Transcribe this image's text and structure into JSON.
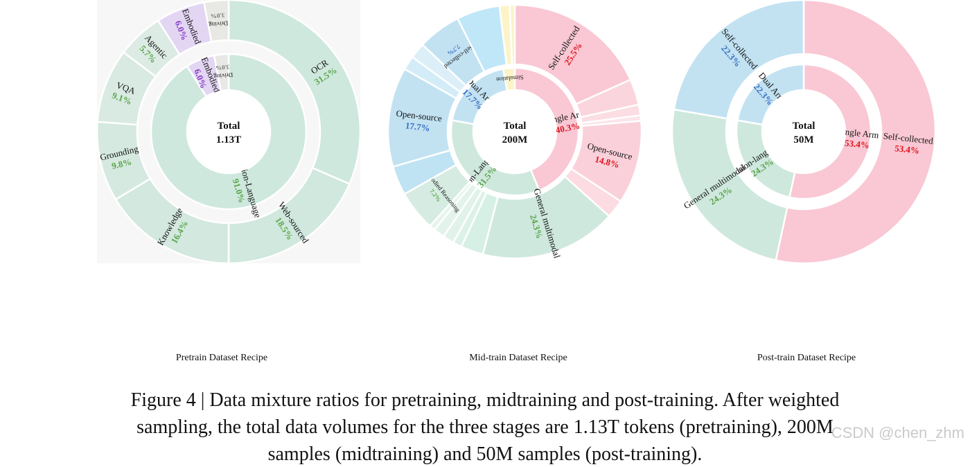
{
  "caption": {
    "line1": "Figure 4 | Data mixture ratios for pretraining, midtraining and post-training. After weighted",
    "line2": "sampling, the total data volumes for the three stages are 1.13T tokens (pretraining), 200M",
    "line3": "samples (midtraining) and 50M samples (post-training)."
  },
  "watermark": "CSDN @chen_zhm",
  "chart_data": [
    {
      "type": "pie",
      "title": "Pretrain Dataset Recipe",
      "center_label": [
        "Total",
        "1.13T"
      ],
      "inner": [
        {
          "name": "Vision-Language",
          "value": 91.0,
          "label": "91.0%",
          "color": "#cfe8de"
        },
        {
          "name": "Embodied",
          "value": 6.0,
          "label": "6.0%",
          "color": "#e3d6f3"
        },
        {
          "name": "Driving",
          "value": 3.0,
          "label": "3.0%",
          "color": "#e8e8e4"
        }
      ],
      "outer": [
        {
          "name": "OCR",
          "value": 31.5,
          "label": "31.5%",
          "color": "#cfe8de",
          "shown": true
        },
        {
          "name": "Web-sourced",
          "value": 18.5,
          "label": "18.5%",
          "color": "#d0e8de",
          "shown": true
        },
        {
          "name": "Knowledge",
          "value": 16.4,
          "label": "16.4%",
          "color": "#d3e8df",
          "shown": true
        },
        {
          "name": "Grounding",
          "value": 9.8,
          "label": "9.8%",
          "color": "#d6e9e0",
          "shown": true
        },
        {
          "name": "VQA",
          "value": 9.1,
          "label": "9.1%",
          "color": "#d9eae2",
          "shown": true
        },
        {
          "name": "Agentic",
          "value": 5.7,
          "label": "5.7%",
          "color": "#dcebe4",
          "shown": true
        },
        {
          "name": "Embodied",
          "value": 6.0,
          "label": "6.0%",
          "color": "#e3d6f3",
          "shown": true
        },
        {
          "name": "Driving",
          "value": 3.0,
          "label": "3.0%",
          "color": "#e8e8e4",
          "shown": true
        }
      ]
    },
    {
      "type": "pie",
      "title": "Mid-train Dataset Recipe",
      "center_label": [
        "Total",
        "200M"
      ],
      "inner": [
        {
          "name": "Single Arm",
          "value": 40.3,
          "label": "40.3%",
          "color": "#f9c8d4"
        },
        {
          "name": "Vision-Language",
          "value": 31.5,
          "label": "31.5%",
          "color": "#cfe8de"
        },
        {
          "name": "Dual Arm",
          "value": 17.7,
          "label": "17.7%",
          "color": "#c2e2f2"
        },
        {
          "name": "Simulation",
          "value": 2.7,
          "label": "",
          "color": "#fcf3c8"
        }
      ],
      "outer": [
        {
          "name": "Self-collected",
          "value": 25.5,
          "label": "25.5%",
          "color": "#f9c8d4",
          "shown": true
        },
        {
          "name": "",
          "value": 4.6,
          "label": "",
          "color": "#fbd5de",
          "shown": false
        },
        {
          "name": "",
          "value": 1.9,
          "label": "",
          "color": "#fcdde4",
          "shown": false
        },
        {
          "name": "",
          "value": 1.0,
          "label": "",
          "color": "#fde4ea",
          "shown": false
        },
        {
          "name": "Open-source",
          "value": 14.8,
          "label": "14.8%",
          "color": "#fad0da",
          "shown": true
        },
        {
          "name": "",
          "value": 3.3,
          "label": "",
          "color": "#fcdbe3",
          "shown": false
        },
        {
          "name": "General multimodal",
          "value": 24.3,
          "label": "24.3%",
          "color": "#cfe8de",
          "shown": true
        },
        {
          "name": "",
          "value": 4.0,
          "label": "",
          "color": "#d7f0e6",
          "shown": false
        },
        {
          "name": "",
          "value": 1.6,
          "label": "",
          "color": "#dcf1e8",
          "shown": false
        },
        {
          "name": "",
          "value": 2.0,
          "label": "",
          "color": "#e0f2ea",
          "shown": false
        },
        {
          "name": "",
          "value": 2.0,
          "label": "",
          "color": "#e3f3ec",
          "shown": false
        },
        {
          "name": "",
          "value": 1.0,
          "label": "",
          "color": "#e7f4ee",
          "shown": false
        },
        {
          "name": "Embodied Reasoning",
          "value": 7.2,
          "label": "7.2%",
          "color": "#d6ece2",
          "shown": true
        },
        {
          "name": "",
          "value": 5.2,
          "label": "",
          "color": "#bfe3f3",
          "shown": false
        },
        {
          "name": "Open-source",
          "value": 17.7,
          "label": "17.7%",
          "color": "#c2e2f2",
          "shown": true
        },
        {
          "name": "",
          "value": 2.5,
          "label": "",
          "color": "#d3ecf8",
          "shown": false
        },
        {
          "name": "",
          "value": 2.8,
          "label": "",
          "color": "#dceff8",
          "shown": false
        },
        {
          "name": "Self-collected",
          "value": 7.7,
          "label": "7.7%",
          "color": "#c2e2f2",
          "shown": true
        },
        {
          "name": "",
          "value": 7.7,
          "label": "",
          "color": "#bfe7f8",
          "shown": false
        },
        {
          "name": "Simulation",
          "value": 1.8,
          "label": "",
          "color": "#fcf3c8",
          "shown": false
        },
        {
          "name": "Simulation",
          "value": 0.9,
          "label": "",
          "color": "#fcf3c8",
          "shown": false
        }
      ]
    },
    {
      "type": "pie",
      "title": "Post-train Dataset Recipe",
      "center_label": [
        "Total",
        "50M"
      ],
      "inner": [
        {
          "name": "Single Arm",
          "value": 53.4,
          "label": "53.4%",
          "color": "#f9c8d4"
        },
        {
          "name": "Vision-language",
          "value": 24.3,
          "label": "24.3%",
          "color": "#cfe8de"
        },
        {
          "name": "Dual Arm",
          "value": 22.3,
          "label": "22.3%",
          "color": "#c2e2f2"
        }
      ],
      "outer": [
        {
          "name": "Self-collected",
          "value": 53.4,
          "label": "53.4%",
          "color": "#f9c8d4",
          "shown": true
        },
        {
          "name": "General multimodal",
          "value": 24.3,
          "label": "24.3%",
          "color": "#cfe8de",
          "shown": true
        },
        {
          "name": "Self-collected",
          "value": 22.3,
          "label": "22.3%",
          "color": "#c2e2f2",
          "shown": true
        }
      ]
    }
  ]
}
